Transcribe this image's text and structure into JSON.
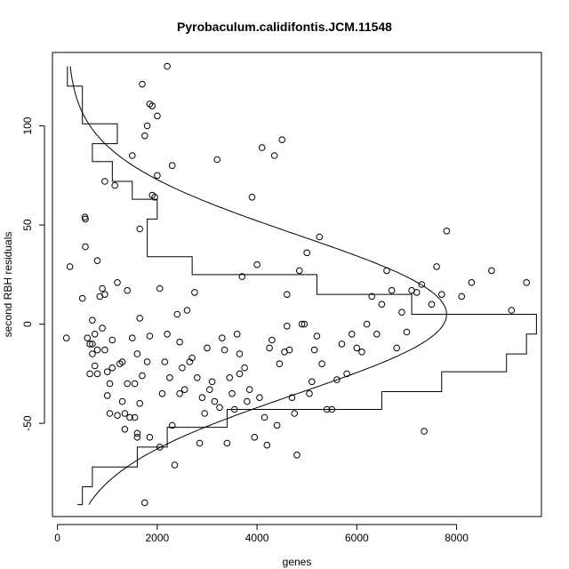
{
  "chart_data": {
    "type": "scatter",
    "title": "Pyrobaculum.calidifontis.JCM.11548",
    "xlabel": "genes",
    "ylabel": "second RBH residuals",
    "xlim": [
      -100,
      9700
    ],
    "ylim": [
      -97,
      137
    ],
    "xticks": [
      0,
      2000,
      4000,
      6000,
      8000
    ],
    "xtick_labels": [
      "0",
      "2000",
      "4000",
      "6000",
      "8000"
    ],
    "yticks": [
      -50,
      0,
      50,
      100
    ],
    "ytick_labels": [
      "-50",
      "0",
      "50",
      "100"
    ],
    "grid": false,
    "legend": "none",
    "colors": {
      "points": "#000000",
      "background": "#ffffff"
    },
    "histogram_left_steps": [
      {
        "y_from": 130,
        "y_to": 120,
        "width": 0
      },
      {
        "y_from": 120,
        "y_to": 101,
        "width": 300
      },
      {
        "y_from": 101,
        "y_to": 91,
        "width": 1000
      },
      {
        "y_from": 91,
        "y_to": 82,
        "width": 500
      },
      {
        "y_from": 82,
        "y_to": 72,
        "width": 900
      },
      {
        "y_from": 72,
        "y_to": 63,
        "width": 1300
      },
      {
        "y_from": 63,
        "y_to": 53,
        "width": 1800
      },
      {
        "y_from": 53,
        "y_to": 44,
        "width": 1600
      },
      {
        "y_from": 44,
        "y_to": 34,
        "width": 1600
      },
      {
        "y_from": 34,
        "y_to": 25,
        "width": 2500
      },
      {
        "y_from": 25,
        "y_to": 15,
        "width": 5000
      },
      {
        "y_from": 15,
        "y_to": 5,
        "width": 6900
      },
      {
        "y_from": 5,
        "y_to": -5,
        "width": 9400
      },
      {
        "y_from": -5,
        "y_to": -15,
        "width": 9200
      },
      {
        "y_from": -15,
        "y_to": -24,
        "width": 8800
      },
      {
        "y_from": -24,
        "y_to": -34,
        "width": 7500
      },
      {
        "y_from": -34,
        "y_to": -43,
        "width": 6300
      },
      {
        "y_from": -43,
        "y_to": -52,
        "width": 3200
      },
      {
        "y_from": -52,
        "y_to": -62,
        "width": 2000
      },
      {
        "y_from": -62,
        "y_to": -72,
        "width": 1400
      },
      {
        "y_from": -72,
        "y_to": -82,
        "width": 500
      },
      {
        "y_from": -82,
        "y_to": -91,
        "width": 300
      }
    ],
    "normal_curve": {
      "mean": 5,
      "sd": 40,
      "peak": 7800,
      "y_range": [
        -91,
        130
      ]
    },
    "points": [
      [
        180,
        -7
      ],
      [
        250,
        29
      ],
      [
        500,
        13
      ],
      [
        550,
        54
      ],
      [
        560,
        53
      ],
      [
        560,
        39
      ],
      [
        600,
        -7
      ],
      [
        650,
        -10
      ],
      [
        700,
        2
      ],
      [
        650,
        -25
      ],
      [
        700,
        -15
      ],
      [
        750,
        -21
      ],
      [
        700,
        -10
      ],
      [
        750,
        -5
      ],
      [
        800,
        -13
      ],
      [
        800,
        -25
      ],
      [
        800,
        32
      ],
      [
        850,
        14
      ],
      [
        900,
        -2
      ],
      [
        950,
        -13
      ],
      [
        900,
        18
      ],
      [
        950,
        15
      ],
      [
        950,
        72
      ],
      [
        1000,
        -24
      ],
      [
        1000,
        -36
      ],
      [
        1050,
        -30
      ],
      [
        1050,
        -45
      ],
      [
        1100,
        -8
      ],
      [
        1100,
        -22
      ],
      [
        1150,
        70
      ],
      [
        1200,
        21
      ],
      [
        1200,
        -46
      ],
      [
        1250,
        -20
      ],
      [
        1300,
        -19
      ],
      [
        1300,
        -39
      ],
      [
        1350,
        -53
      ],
      [
        1350,
        -45
      ],
      [
        1400,
        17
      ],
      [
        1400,
        -30
      ],
      [
        1450,
        -47
      ],
      [
        1500,
        85
      ],
      [
        1500,
        -7
      ],
      [
        1550,
        -47
      ],
      [
        1550,
        -30
      ],
      [
        1600,
        -15
      ],
      [
        1600,
        -57
      ],
      [
        1650,
        48
      ],
      [
        1650,
        3
      ],
      [
        1650,
        -40
      ],
      [
        1700,
        121
      ],
      [
        1700,
        -26
      ],
      [
        1750,
        95
      ],
      [
        1750,
        -90
      ],
      [
        1800,
        100
      ],
      [
        1800,
        -19
      ],
      [
        1850,
        111
      ],
      [
        1850,
        -6
      ],
      [
        1850,
        -57
      ],
      [
        1900,
        110
      ],
      [
        1900,
        65
      ],
      [
        1950,
        64
      ],
      [
        2000,
        105
      ],
      [
        2000,
        75
      ],
      [
        2050,
        18
      ],
      [
        2050,
        -62
      ],
      [
        2100,
        -35
      ],
      [
        2150,
        -19
      ],
      [
        2200,
        -5
      ],
      [
        2250,
        -27
      ],
      [
        2300,
        80
      ],
      [
        2300,
        -51
      ],
      [
        2350,
        -71
      ],
      [
        2400,
        5
      ],
      [
        2450,
        -9
      ],
      [
        2500,
        -22
      ],
      [
        2550,
        -33
      ],
      [
        2600,
        7
      ],
      [
        2650,
        -19
      ],
      [
        2700,
        -17
      ],
      [
        2750,
        16
      ],
      [
        2800,
        -27
      ],
      [
        2850,
        -60
      ],
      [
        2900,
        -37
      ],
      [
        2950,
        -45
      ],
      [
        3000,
        -12
      ],
      [
        3050,
        -33
      ],
      [
        3100,
        -29
      ],
      [
        3150,
        -39
      ],
      [
        3200,
        83
      ],
      [
        3250,
        -42
      ],
      [
        3300,
        -7
      ],
      [
        3350,
        -13
      ],
      [
        3400,
        -60
      ],
      [
        3450,
        -27
      ],
      [
        3500,
        -35
      ],
      [
        3550,
        -43
      ],
      [
        3600,
        -5
      ],
      [
        3650,
        -15
      ],
      [
        3700,
        24
      ],
      [
        3750,
        -22
      ],
      [
        3800,
        -39
      ],
      [
        3850,
        -33
      ],
      [
        3900,
        64
      ],
      [
        3950,
        -57
      ],
      [
        4000,
        30
      ],
      [
        4050,
        -37
      ],
      [
        4100,
        89
      ],
      [
        4150,
        -47
      ],
      [
        4200,
        -61
      ],
      [
        4250,
        -12
      ],
      [
        4300,
        -8
      ],
      [
        4350,
        85
      ],
      [
        4400,
        -51
      ],
      [
        4450,
        -20
      ],
      [
        4500,
        93
      ],
      [
        4550,
        -14
      ],
      [
        4600,
        15
      ],
      [
        4650,
        -13
      ],
      [
        4700,
        -37
      ],
      [
        4750,
        -45
      ],
      [
        4800,
        -66
      ],
      [
        4850,
        27
      ],
      [
        4900,
        0
      ],
      [
        4950,
        0
      ],
      [
        5000,
        36
      ],
      [
        5050,
        -35
      ],
      [
        5100,
        -29
      ],
      [
        5150,
        -13
      ],
      [
        5200,
        -6
      ],
      [
        5250,
        44
      ],
      [
        5300,
        -20
      ],
      [
        5400,
        -43
      ],
      [
        5500,
        -43
      ],
      [
        5600,
        -28
      ],
      [
        5700,
        -10
      ],
      [
        5800,
        -25
      ],
      [
        5900,
        -5
      ],
      [
        6000,
        -12
      ],
      [
        6100,
        -14
      ],
      [
        6200,
        0
      ],
      [
        6300,
        14
      ],
      [
        6400,
        -5
      ],
      [
        6500,
        10
      ],
      [
        6600,
        27
      ],
      [
        6700,
        17
      ],
      [
        6800,
        -12
      ],
      [
        6900,
        6
      ],
      [
        7000,
        -4
      ],
      [
        7100,
        17
      ],
      [
        7200,
        16
      ],
      [
        7300,
        20
      ],
      [
        7350,
        -54
      ],
      [
        7500,
        10
      ],
      [
        7600,
        29
      ],
      [
        7700,
        15
      ],
      [
        7800,
        47
      ],
      [
        8100,
        14
      ],
      [
        8300,
        21
      ],
      [
        8700,
        27
      ],
      [
        9100,
        7
      ],
      [
        9400,
        21
      ],
      [
        2200,
        130
      ],
      [
        1600,
        -55
      ],
      [
        2450,
        -35
      ],
      [
        3650,
        -25
      ],
      [
        4600,
        -1
      ]
    ]
  }
}
